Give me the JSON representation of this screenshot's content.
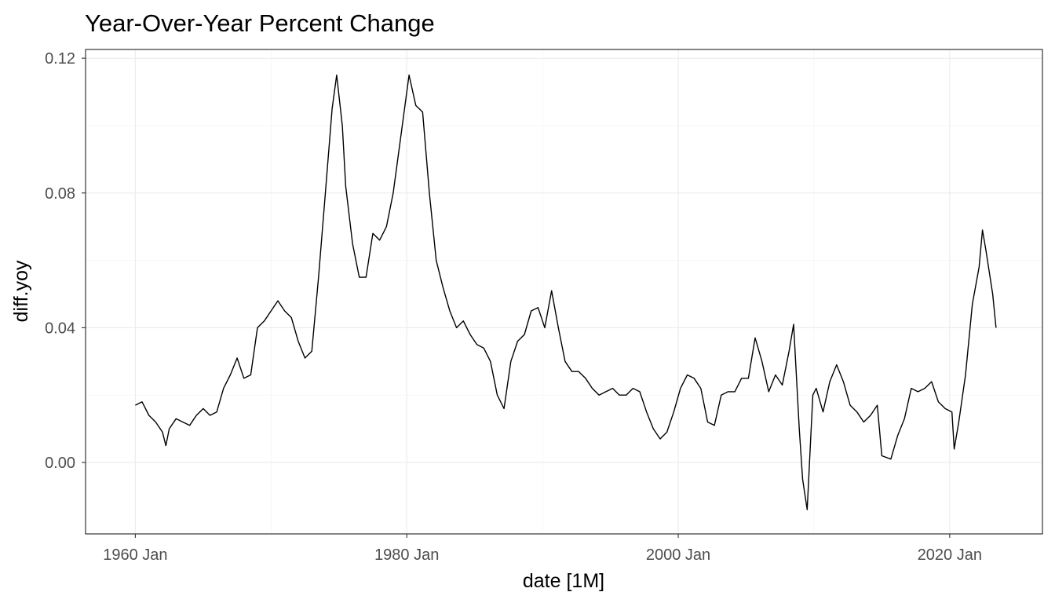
{
  "chart_data": {
    "type": "line",
    "title": "Year-Over-Year Percent Change",
    "xlabel": "date [1M]",
    "ylabel": "diff.yoy",
    "x_ticks": [
      "1960 Jan",
      "1980 Jan",
      "2000 Jan",
      "2020 Jan"
    ],
    "y_ticks": [
      "0.00",
      "0.04",
      "0.08",
      "0.12"
    ],
    "xlim": [
      "1956-05",
      "2026-11"
    ],
    "ylim": [
      -0.0212,
      0.1226
    ],
    "grid": true,
    "legend": "none",
    "colors": {
      "line": "#000000",
      "grid": "#ebebeb",
      "panel_border": "#333333"
    },
    "series": [
      {
        "points": [
          [
            "1960-01",
            0.017
          ],
          [
            "1960-07",
            0.018
          ],
          [
            "1961-01",
            0.014
          ],
          [
            "1961-07",
            0.012
          ],
          [
            "1962-01",
            0.009
          ],
          [
            "1962-04",
            0.005
          ],
          [
            "1962-07",
            0.01
          ],
          [
            "1963-01",
            0.013
          ],
          [
            "1963-07",
            0.012
          ],
          [
            "1964-01",
            0.011
          ],
          [
            "1964-07",
            0.014
          ],
          [
            "1965-01",
            0.016
          ],
          [
            "1965-07",
            0.014
          ],
          [
            "1966-01",
            0.015
          ],
          [
            "1966-07",
            0.022
          ],
          [
            "1967-01",
            0.026
          ],
          [
            "1967-07",
            0.031
          ],
          [
            "1968-01",
            0.025
          ],
          [
            "1968-07",
            0.026
          ],
          [
            "1969-01",
            0.04
          ],
          [
            "1969-07",
            0.042
          ],
          [
            "1970-01",
            0.045
          ],
          [
            "1970-07",
            0.048
          ],
          [
            "1971-01",
            0.045
          ],
          [
            "1971-07",
            0.043
          ],
          [
            "1972-01",
            0.036
          ],
          [
            "1972-07",
            0.031
          ],
          [
            "1973-01",
            0.033
          ],
          [
            "1973-07",
            0.055
          ],
          [
            "1974-01",
            0.08
          ],
          [
            "1974-07",
            0.105
          ],
          [
            "1974-11",
            0.115
          ],
          [
            "1975-04",
            0.1
          ],
          [
            "1975-07",
            0.082
          ],
          [
            "1976-01",
            0.065
          ],
          [
            "1976-07",
            0.055
          ],
          [
            "1977-01",
            0.055
          ],
          [
            "1977-07",
            0.068
          ],
          [
            "1978-01",
            0.066
          ],
          [
            "1978-07",
            0.07
          ],
          [
            "1979-01",
            0.08
          ],
          [
            "1979-07",
            0.095
          ],
          [
            "1980-03",
            0.115
          ],
          [
            "1980-09",
            0.106
          ],
          [
            "1981-03",
            0.104
          ],
          [
            "1981-09",
            0.08
          ],
          [
            "1982-03",
            0.06
          ],
          [
            "1982-09",
            0.052
          ],
          [
            "1983-03",
            0.045
          ],
          [
            "1983-09",
            0.04
          ],
          [
            "1984-03",
            0.042
          ],
          [
            "1984-09",
            0.038
          ],
          [
            "1985-03",
            0.035
          ],
          [
            "1985-09",
            0.034
          ],
          [
            "1986-03",
            0.03
          ],
          [
            "1986-09",
            0.02
          ],
          [
            "1987-03",
            0.016
          ],
          [
            "1987-09",
            0.03
          ],
          [
            "1988-03",
            0.036
          ],
          [
            "1988-09",
            0.038
          ],
          [
            "1989-03",
            0.045
          ],
          [
            "1989-09",
            0.046
          ],
          [
            "1990-03",
            0.04
          ],
          [
            "1990-09",
            0.051
          ],
          [
            "1991-03",
            0.04
          ],
          [
            "1991-09",
            0.03
          ],
          [
            "1992-03",
            0.027
          ],
          [
            "1992-09",
            0.027
          ],
          [
            "1993-03",
            0.025
          ],
          [
            "1993-09",
            0.022
          ],
          [
            "1994-03",
            0.02
          ],
          [
            "1994-09",
            0.021
          ],
          [
            "1995-03",
            0.022
          ],
          [
            "1995-09",
            0.02
          ],
          [
            "1996-03",
            0.02
          ],
          [
            "1996-09",
            0.022
          ],
          [
            "1997-03",
            0.021
          ],
          [
            "1997-09",
            0.015
          ],
          [
            "1998-03",
            0.01
          ],
          [
            "1998-09",
            0.007
          ],
          [
            "1999-03",
            0.009
          ],
          [
            "1999-09",
            0.015
          ],
          [
            "2000-03",
            0.022
          ],
          [
            "2000-09",
            0.026
          ],
          [
            "2001-03",
            0.025
          ],
          [
            "2001-09",
            0.022
          ],
          [
            "2002-03",
            0.012
          ],
          [
            "2002-09",
            0.011
          ],
          [
            "2003-03",
            0.02
          ],
          [
            "2003-09",
            0.021
          ],
          [
            "2004-03",
            0.021
          ],
          [
            "2004-09",
            0.025
          ],
          [
            "2005-03",
            0.025
          ],
          [
            "2005-09",
            0.037
          ],
          [
            "2006-03",
            0.03
          ],
          [
            "2006-09",
            0.021
          ],
          [
            "2007-03",
            0.026
          ],
          [
            "2007-09",
            0.023
          ],
          [
            "2008-03",
            0.033
          ],
          [
            "2008-07",
            0.041
          ],
          [
            "2008-12",
            0.01
          ],
          [
            "2009-03",
            -0.005
          ],
          [
            "2009-07",
            -0.014
          ],
          [
            "2009-12",
            0.02
          ],
          [
            "2010-03",
            0.022
          ],
          [
            "2010-09",
            0.015
          ],
          [
            "2011-03",
            0.024
          ],
          [
            "2011-09",
            0.029
          ],
          [
            "2012-03",
            0.024
          ],
          [
            "2012-09",
            0.017
          ],
          [
            "2013-03",
            0.015
          ],
          [
            "2013-09",
            0.012
          ],
          [
            "2014-03",
            0.014
          ],
          [
            "2014-09",
            0.017
          ],
          [
            "2015-01",
            0.002
          ],
          [
            "2015-09",
            0.001
          ],
          [
            "2016-03",
            0.008
          ],
          [
            "2016-09",
            0.013
          ],
          [
            "2017-03",
            0.022
          ],
          [
            "2017-09",
            0.021
          ],
          [
            "2018-03",
            0.022
          ],
          [
            "2018-09",
            0.024
          ],
          [
            "2019-03",
            0.018
          ],
          [
            "2019-09",
            0.016
          ],
          [
            "2020-03",
            0.015
          ],
          [
            "2020-05",
            0.004
          ],
          [
            "2020-09",
            0.012
          ],
          [
            "2021-03",
            0.026
          ],
          [
            "2021-09",
            0.047
          ],
          [
            "2022-03",
            0.058
          ],
          [
            "2022-06",
            0.069
          ],
          [
            "2022-09",
            0.063
          ],
          [
            "2023-03",
            0.05
          ],
          [
            "2023-06",
            0.04
          ]
        ]
      }
    ]
  }
}
